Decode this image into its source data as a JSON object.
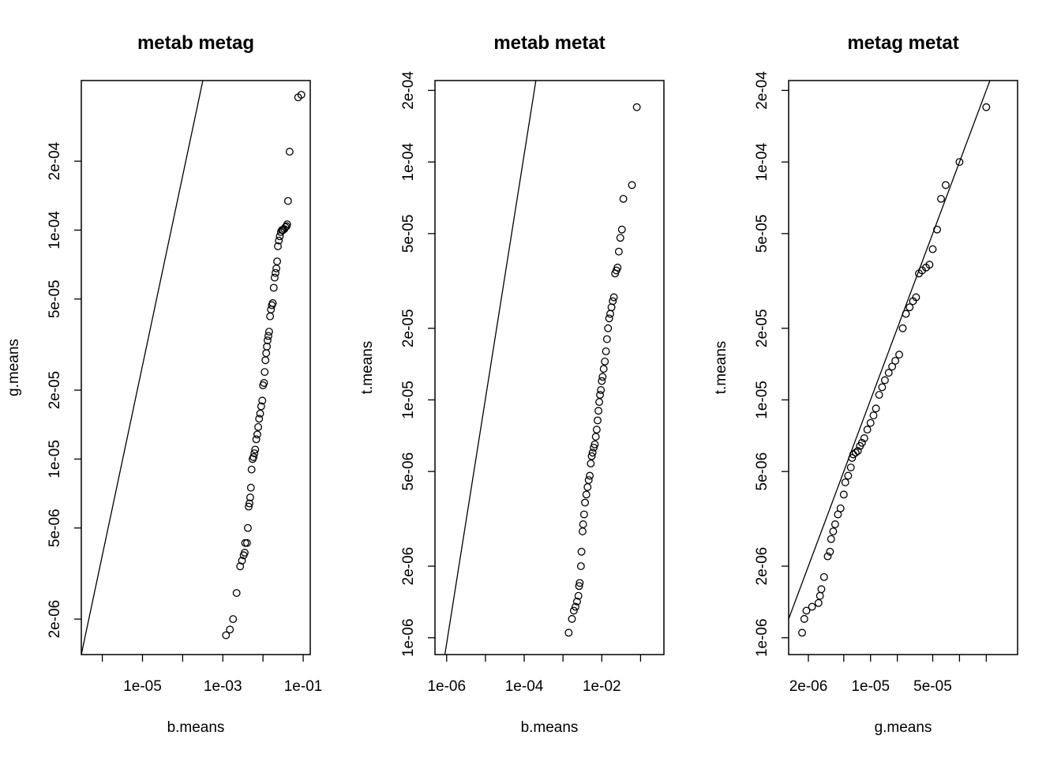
{
  "chart_data": [
    {
      "type": "scatter",
      "title": "metab metag",
      "xlabel": "b.means",
      "ylabel": "g.means",
      "log_x": true,
      "log_y": true,
      "xlim": [
        3e-07,
        0.15
      ],
      "ylim": [
        1.4e-06,
        0.00045
      ],
      "xticks": [
        1e-05,
        0.001,
        0.1
      ],
      "xtick_labels": [
        "1e-05",
        "1e-03",
        "1e-01"
      ],
      "x_minor_ticks": [
        1e-06,
        0.0001,
        0.01
      ],
      "yticks": [
        2e-06,
        5e-06,
        1e-05,
        2e-05,
        5e-05,
        0.0001,
        0.0002
      ],
      "ytick_labels": [
        "2e-06",
        "5e-06",
        "1e-05",
        "2e-05",
        "5e-05",
        "1e-04",
        "2e-04"
      ],
      "reference_line": {
        "x": [
          3e-07,
          0.00045
        ],
        "y": [
          1.4e-06,
          0.0006
        ]
      },
      "points": [
        {
          "x": 0.0012,
          "y": 1.7e-06
        },
        {
          "x": 0.0015,
          "y": 1.8e-06
        },
        {
          "x": 0.0018,
          "y": 2e-06
        },
        {
          "x": 0.0022,
          "y": 2.6e-06
        },
        {
          "x": 0.0027,
          "y": 3.4e-06
        },
        {
          "x": 0.003,
          "y": 3.6e-06
        },
        {
          "x": 0.0033,
          "y": 3.8e-06
        },
        {
          "x": 0.0035,
          "y": 3.9e-06
        },
        {
          "x": 0.0036,
          "y": 4.3e-06
        },
        {
          "x": 0.004,
          "y": 4.3e-06
        },
        {
          "x": 0.0042,
          "y": 5e-06
        },
        {
          "x": 0.0044,
          "y": 6.2e-06
        },
        {
          "x": 0.0046,
          "y": 6.4e-06
        },
        {
          "x": 0.0048,
          "y": 6.8e-06
        },
        {
          "x": 0.005,
          "y": 7.5e-06
        },
        {
          "x": 0.0052,
          "y": 9e-06
        },
        {
          "x": 0.0055,
          "y": 1e-05
        },
        {
          "x": 0.0058,
          "y": 1.02e-05
        },
        {
          "x": 0.0061,
          "y": 1.06e-05
        },
        {
          "x": 0.0064,
          "y": 1.1e-05
        },
        {
          "x": 0.0068,
          "y": 1.22e-05
        },
        {
          "x": 0.0072,
          "y": 1.28e-05
        },
        {
          "x": 0.0076,
          "y": 1.38e-05
        },
        {
          "x": 0.008,
          "y": 1.5e-05
        },
        {
          "x": 0.0085,
          "y": 1.58e-05
        },
        {
          "x": 0.009,
          "y": 1.7e-05
        },
        {
          "x": 0.0096,
          "y": 1.8e-05
        },
        {
          "x": 0.01,
          "y": 2.1e-05
        },
        {
          "x": 0.0106,
          "y": 2.15e-05
        },
        {
          "x": 0.011,
          "y": 2.4e-05
        },
        {
          "x": 0.0115,
          "y": 2.7e-05
        },
        {
          "x": 0.012,
          "y": 2.9e-05
        },
        {
          "x": 0.0125,
          "y": 3.1e-05
        },
        {
          "x": 0.013,
          "y": 3.3e-05
        },
        {
          "x": 0.0136,
          "y": 3.45e-05
        },
        {
          "x": 0.0142,
          "y": 3.6e-05
        },
        {
          "x": 0.015,
          "y": 4.2e-05
        },
        {
          "x": 0.0158,
          "y": 4.5e-05
        },
        {
          "x": 0.0166,
          "y": 4.7e-05
        },
        {
          "x": 0.0175,
          "y": 4.8e-05
        },
        {
          "x": 0.0185,
          "y": 5.6e-05
        },
        {
          "x": 0.0195,
          "y": 6.2e-05
        },
        {
          "x": 0.0205,
          "y": 6.5e-05
        },
        {
          "x": 0.0215,
          "y": 6.8e-05
        },
        {
          "x": 0.0225,
          "y": 7.3e-05
        },
        {
          "x": 0.0235,
          "y": 8.5e-05
        },
        {
          "x": 0.0248,
          "y": 9e-05
        },
        {
          "x": 0.0262,
          "y": 9.4e-05
        },
        {
          "x": 0.0278,
          "y": 9.8e-05
        },
        {
          "x": 0.0295,
          "y": 0.0001
        },
        {
          "x": 0.0315,
          "y": 0.0001
        },
        {
          "x": 0.034,
          "y": 0.000101
        },
        {
          "x": 0.036,
          "y": 0.000103
        },
        {
          "x": 0.0385,
          "y": 0.000104
        },
        {
          "x": 0.04,
          "y": 0.000106
        },
        {
          "x": 0.042,
          "y": 0.000134
        },
        {
          "x": 0.046,
          "y": 0.00022
        },
        {
          "x": 0.075,
          "y": 0.00038
        },
        {
          "x": 0.09,
          "y": 0.00039
        }
      ]
    },
    {
      "type": "scatter",
      "title": "metab metat",
      "xlabel": "b.means",
      "ylabel": "t.means",
      "log_x": true,
      "log_y": true,
      "xlim": [
        5e-07,
        0.4
      ],
      "ylim": [
        8.5e-07,
        0.00022
      ],
      "xticks": [
        1e-06,
        0.0001,
        0.01
      ],
      "xtick_labels": [
        "1e-06",
        "1e-04",
        "1e-02"
      ],
      "x_minor_ticks": [
        1e-05,
        0.001,
        0.1
      ],
      "yticks": [
        1e-06,
        2e-06,
        5e-06,
        1e-05,
        2e-05,
        5e-05,
        0.0001,
        0.0002
      ],
      "ytick_labels": [
        "1e-06",
        "2e-06",
        "5e-06",
        "1e-05",
        "2e-05",
        "5e-05",
        "1e-04",
        "2e-04"
      ],
      "reference_line": {
        "x": [
          9e-07,
          0.0002
        ],
        "y": [
          8.5e-07,
          0.00022
        ]
      },
      "points": [
        {
          "x": 0.0014,
          "y": 1.05e-06
        },
        {
          "x": 0.0017,
          "y": 1.2e-06
        },
        {
          "x": 0.0019,
          "y": 1.3e-06
        },
        {
          "x": 0.0021,
          "y": 1.35e-06
        },
        {
          "x": 0.0023,
          "y": 1.42e-06
        },
        {
          "x": 0.0025,
          "y": 1.5e-06
        },
        {
          "x": 0.0026,
          "y": 1.65e-06
        },
        {
          "x": 0.0027,
          "y": 1.7e-06
        },
        {
          "x": 0.0029,
          "y": 2e-06
        },
        {
          "x": 0.003,
          "y": 2.3e-06
        },
        {
          "x": 0.0032,
          "y": 2.8e-06
        },
        {
          "x": 0.0033,
          "y": 3e-06
        },
        {
          "x": 0.0035,
          "y": 3.3e-06
        },
        {
          "x": 0.0037,
          "y": 3.7e-06
        },
        {
          "x": 0.004,
          "y": 4e-06
        },
        {
          "x": 0.0043,
          "y": 4.3e-06
        },
        {
          "x": 0.0046,
          "y": 4.6e-06
        },
        {
          "x": 0.0049,
          "y": 4.8e-06
        },
        {
          "x": 0.0052,
          "y": 5.4e-06
        },
        {
          "x": 0.0055,
          "y": 5.8e-06
        },
        {
          "x": 0.0058,
          "y": 6e-06
        },
        {
          "x": 0.0062,
          "y": 6.3e-06
        },
        {
          "x": 0.0066,
          "y": 6.5e-06
        },
        {
          "x": 0.007,
          "y": 7e-06
        },
        {
          "x": 0.0074,
          "y": 7.5e-06
        },
        {
          "x": 0.0078,
          "y": 8.2e-06
        },
        {
          "x": 0.0082,
          "y": 9e-06
        },
        {
          "x": 0.0086,
          "y": 9.8e-06
        },
        {
          "x": 0.009,
          "y": 1.05e-05
        },
        {
          "x": 0.0095,
          "y": 1.1e-05
        },
        {
          "x": 0.01,
          "y": 1.2e-05
        },
        {
          "x": 0.0105,
          "y": 1.25e-05
        },
        {
          "x": 0.0112,
          "y": 1.35e-05
        },
        {
          "x": 0.012,
          "y": 1.45e-05
        },
        {
          "x": 0.0128,
          "y": 1.6e-05
        },
        {
          "x": 0.0136,
          "y": 1.8e-05
        },
        {
          "x": 0.0145,
          "y": 2e-05
        },
        {
          "x": 0.0155,
          "y": 2.2e-05
        },
        {
          "x": 0.0165,
          "y": 2.3e-05
        },
        {
          "x": 0.0178,
          "y": 2.45e-05
        },
        {
          "x": 0.0192,
          "y": 2.6e-05
        },
        {
          "x": 0.0205,
          "y": 2.7e-05
        },
        {
          "x": 0.022,
          "y": 3.4e-05
        },
        {
          "x": 0.0238,
          "y": 3.5e-05
        },
        {
          "x": 0.0255,
          "y": 3.6e-05
        },
        {
          "x": 0.0275,
          "y": 4.2e-05
        },
        {
          "x": 0.03,
          "y": 4.8e-05
        },
        {
          "x": 0.033,
          "y": 5.2e-05
        },
        {
          "x": 0.036,
          "y": 7e-05
        },
        {
          "x": 0.06,
          "y": 8e-05
        },
        {
          "x": 0.08,
          "y": 0.00017
        }
      ]
    },
    {
      "type": "scatter",
      "title": "metag metat",
      "xlabel": "g.means",
      "ylabel": "t.means",
      "log_x": true,
      "log_y": true,
      "xlim": [
        1.2e-06,
        0.00045
      ],
      "ylim": [
        8.5e-07,
        0.00022
      ],
      "xticks": [
        2e-06,
        1e-05,
        5e-05
      ],
      "xtick_labels": [
        "2e-06",
        "1e-05",
        "5e-05"
      ],
      "x_minor_ticks": [
        5e-06,
        2e-05,
        0.0001,
        0.0002
      ],
      "yticks": [
        1e-06,
        2e-06,
        5e-06,
        1e-05,
        2e-05,
        5e-05,
        0.0001,
        0.0002
      ],
      "ytick_labels": [
        "1e-06",
        "2e-06",
        "5e-06",
        "1e-05",
        "2e-05",
        "5e-05",
        "1e-04",
        "2e-04"
      ],
      "reference_line": {
        "x": [
          1.2e-06,
          0.00022
        ],
        "y": [
          1.2e-06,
          0.00022
        ]
      },
      "points": [
        {
          "x": 1.7e-06,
          "y": 1.05e-06
        },
        {
          "x": 1.8e-06,
          "y": 1.2e-06
        },
        {
          "x": 1.9e-06,
          "y": 1.3e-06
        },
        {
          "x": 2.2e-06,
          "y": 1.35e-06
        },
        {
          "x": 2.6e-06,
          "y": 1.4e-06
        },
        {
          "x": 2.7e-06,
          "y": 1.5e-06
        },
        {
          "x": 2.8e-06,
          "y": 1.6e-06
        },
        {
          "x": 3e-06,
          "y": 1.8e-06
        },
        {
          "x": 3.3e-06,
          "y": 2.2e-06
        },
        {
          "x": 3.5e-06,
          "y": 2.3e-06
        },
        {
          "x": 3.6e-06,
          "y": 2.6e-06
        },
        {
          "x": 3.8e-06,
          "y": 2.8e-06
        },
        {
          "x": 4e-06,
          "y": 3e-06
        },
        {
          "x": 4.3e-06,
          "y": 3.3e-06
        },
        {
          "x": 4.6e-06,
          "y": 3.5e-06
        },
        {
          "x": 5e-06,
          "y": 4e-06
        },
        {
          "x": 5.2e-06,
          "y": 4.5e-06
        },
        {
          "x": 5.6e-06,
          "y": 4.8e-06
        },
        {
          "x": 6e-06,
          "y": 5.2e-06
        },
        {
          "x": 6.2e-06,
          "y": 5.7e-06
        },
        {
          "x": 6.4e-06,
          "y": 5.9e-06
        },
        {
          "x": 6.8e-06,
          "y": 6e-06
        },
        {
          "x": 7.2e-06,
          "y": 6.1e-06
        },
        {
          "x": 7.6e-06,
          "y": 6.4e-06
        },
        {
          "x": 8e-06,
          "y": 6.6e-06
        },
        {
          "x": 8.5e-06,
          "y": 6.9e-06
        },
        {
          "x": 9.2e-06,
          "y": 7.5e-06
        },
        {
          "x": 1e-05,
          "y": 8e-06
        },
        {
          "x": 1.08e-05,
          "y": 8.6e-06
        },
        {
          "x": 1.15e-05,
          "y": 9.2e-06
        },
        {
          "x": 1.25e-05,
          "y": 1.05e-05
        },
        {
          "x": 1.35e-05,
          "y": 1.13e-05
        },
        {
          "x": 1.45e-05,
          "y": 1.21e-05
        },
        {
          "x": 1.6e-05,
          "y": 1.3e-05
        },
        {
          "x": 1.75e-05,
          "y": 1.38e-05
        },
        {
          "x": 1.9e-05,
          "y": 1.46e-05
        },
        {
          "x": 2.1e-05,
          "y": 1.55e-05
        },
        {
          "x": 2.3e-05,
          "y": 2e-05
        },
        {
          "x": 2.5e-05,
          "y": 2.3e-05
        },
        {
          "x": 2.75e-05,
          "y": 2.45e-05
        },
        {
          "x": 3e-05,
          "y": 2.6e-05
        },
        {
          "x": 3.25e-05,
          "y": 2.7e-05
        },
        {
          "x": 3.5e-05,
          "y": 3.4e-05
        },
        {
          "x": 3.8e-05,
          "y": 3.5e-05
        },
        {
          "x": 4.2e-05,
          "y": 3.6e-05
        },
        {
          "x": 4.6e-05,
          "y": 3.7e-05
        },
        {
          "x": 5e-05,
          "y": 4.3e-05
        },
        {
          "x": 5.6e-05,
          "y": 5.2e-05
        },
        {
          "x": 6.2e-05,
          "y": 7e-05
        },
        {
          "x": 7e-05,
          "y": 8e-05
        },
        {
          "x": 0.0001,
          "y": 0.0001
        },
        {
          "x": 0.0002,
          "y": 0.00017
        }
      ]
    }
  ]
}
